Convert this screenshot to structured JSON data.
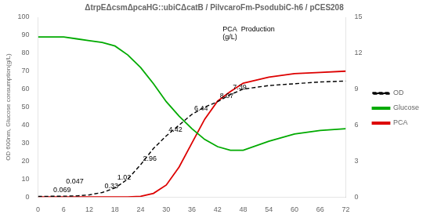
{
  "chart_data": {
    "type": "line",
    "title": "ΔtrpEΔcsmΔpcaHG::ubiCΔcatB / PilvcaroFm-PsodubiC-h6 / pCES208",
    "ylabel": "OD 600nm, Glucose consumption(g/L)",
    "xlim": [
      0,
      72
    ],
    "xticks": [
      0,
      6,
      12,
      18,
      24,
      30,
      36,
      42,
      48,
      54,
      60,
      66,
      72
    ],
    "ylim": [
      0,
      100
    ],
    "yticks": [
      0,
      10,
      20,
      30,
      40,
      50,
      60,
      70,
      80,
      90,
      100
    ],
    "y2lim": [
      0,
      15
    ],
    "y2ticks": [
      0,
      3,
      6,
      9,
      12,
      15
    ],
    "grid": false,
    "legend": "right",
    "x": [
      0,
      3,
      6,
      9,
      12,
      15,
      18,
      21,
      24,
      27,
      30,
      33,
      36,
      39,
      42,
      45,
      48,
      54,
      60,
      66,
      72
    ],
    "series": [
      {
        "name": "OD",
        "color": "#000000",
        "line_style": "dashed",
        "values": [
          0.3,
          0.4,
          0.45,
          0.6,
          1.2,
          2.5,
          5.0,
          10,
          18,
          27,
          34,
          40,
          46,
          50,
          53,
          57,
          60,
          62,
          63,
          64,
          64.5
        ]
      },
      {
        "name": "Glucose",
        "color": "#00aa00",
        "line_style": "solid",
        "values": [
          89,
          89,
          89,
          88,
          87,
          86,
          84,
          79,
          72,
          63,
          53,
          45,
          38,
          32,
          28,
          26,
          26,
          31,
          35,
          37,
          38
        ]
      },
      {
        "name": "PCA",
        "color": "#dd0000",
        "line_style": "solid",
        "axis": "y2",
        "values": [
          0.0,
          0.0,
          0.0,
          0.0,
          0.0,
          0.0,
          0.0,
          0.0,
          0.05,
          0.3,
          1.0,
          2.5,
          4.5,
          6.5,
          8.0,
          8.8,
          9.5,
          10.0,
          10.3,
          10.4,
          10.5
        ]
      }
    ],
    "annotations": [
      {
        "x": 3,
        "y": 0.4,
        "text": "0.069"
      },
      {
        "x": 6,
        "y": 0.45,
        "text": "0.047"
      },
      {
        "x": 15,
        "y": 2.5,
        "text": "0.33"
      },
      {
        "x": 18,
        "y": 5.0,
        "text": "1.02"
      },
      {
        "x": 24,
        "y": 18,
        "text": "2.96"
      },
      {
        "x": 30,
        "y": 34,
        "text": "4.42"
      },
      {
        "x": 36,
        "y": 46,
        "text": "6.44"
      },
      {
        "x": 42,
        "y": 53,
        "text": "8.07"
      },
      {
        "x": 45,
        "y": 57,
        "text": "7.39"
      },
      {
        "text": "PCA  Production\n(g/L)"
      }
    ]
  }
}
